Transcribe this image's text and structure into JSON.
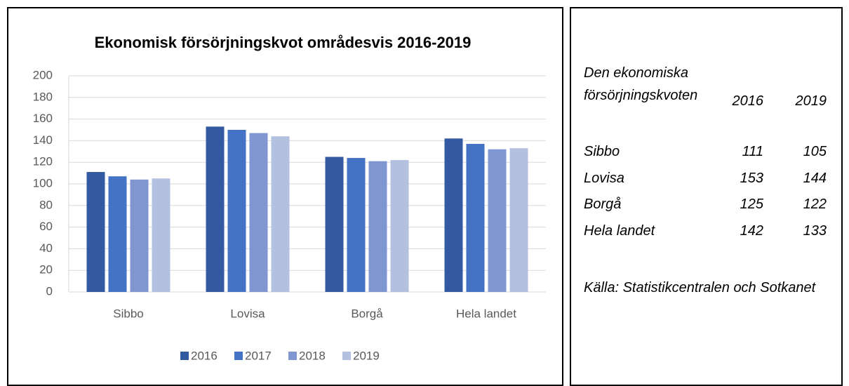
{
  "chart_data": {
    "type": "bar",
    "title": "Ekonomisk försörjningskvot områdesvis 2016-2019",
    "categories": [
      "Sibbo",
      "Lovisa",
      "Borgå",
      "Hela landet"
    ],
    "series": [
      {
        "name": "2016",
        "color": "#335aa0",
        "values": [
          111,
          153,
          125,
          142
        ]
      },
      {
        "name": "2017",
        "color": "#4472c4",
        "values": [
          107,
          150,
          124,
          137
        ]
      },
      {
        "name": "2018",
        "color": "#7f96d1",
        "values": [
          104,
          147,
          121,
          132
        ]
      },
      {
        "name": "2019",
        "color": "#b4c0e0",
        "values": [
          105,
          144,
          122,
          133
        ]
      }
    ],
    "ylim": [
      0,
      200
    ],
    "yticks": [
      0,
      20,
      40,
      60,
      80,
      100,
      120,
      140,
      160,
      180,
      200
    ],
    "grid": true,
    "legend": "bottom"
  },
  "side_panel": {
    "heading": "Den ekonomiska försörjningskvoten",
    "columns": [
      "2016",
      "2019"
    ],
    "rows": [
      [
        "Sibbo",
        "111",
        "105"
      ],
      [
        "Lovisa",
        "153",
        "144"
      ],
      [
        "Borgå",
        "125",
        "122"
      ],
      [
        "Hela landet",
        "142",
        "133"
      ]
    ],
    "source": "Källa: Statistikcentralen och Sotkanet"
  }
}
